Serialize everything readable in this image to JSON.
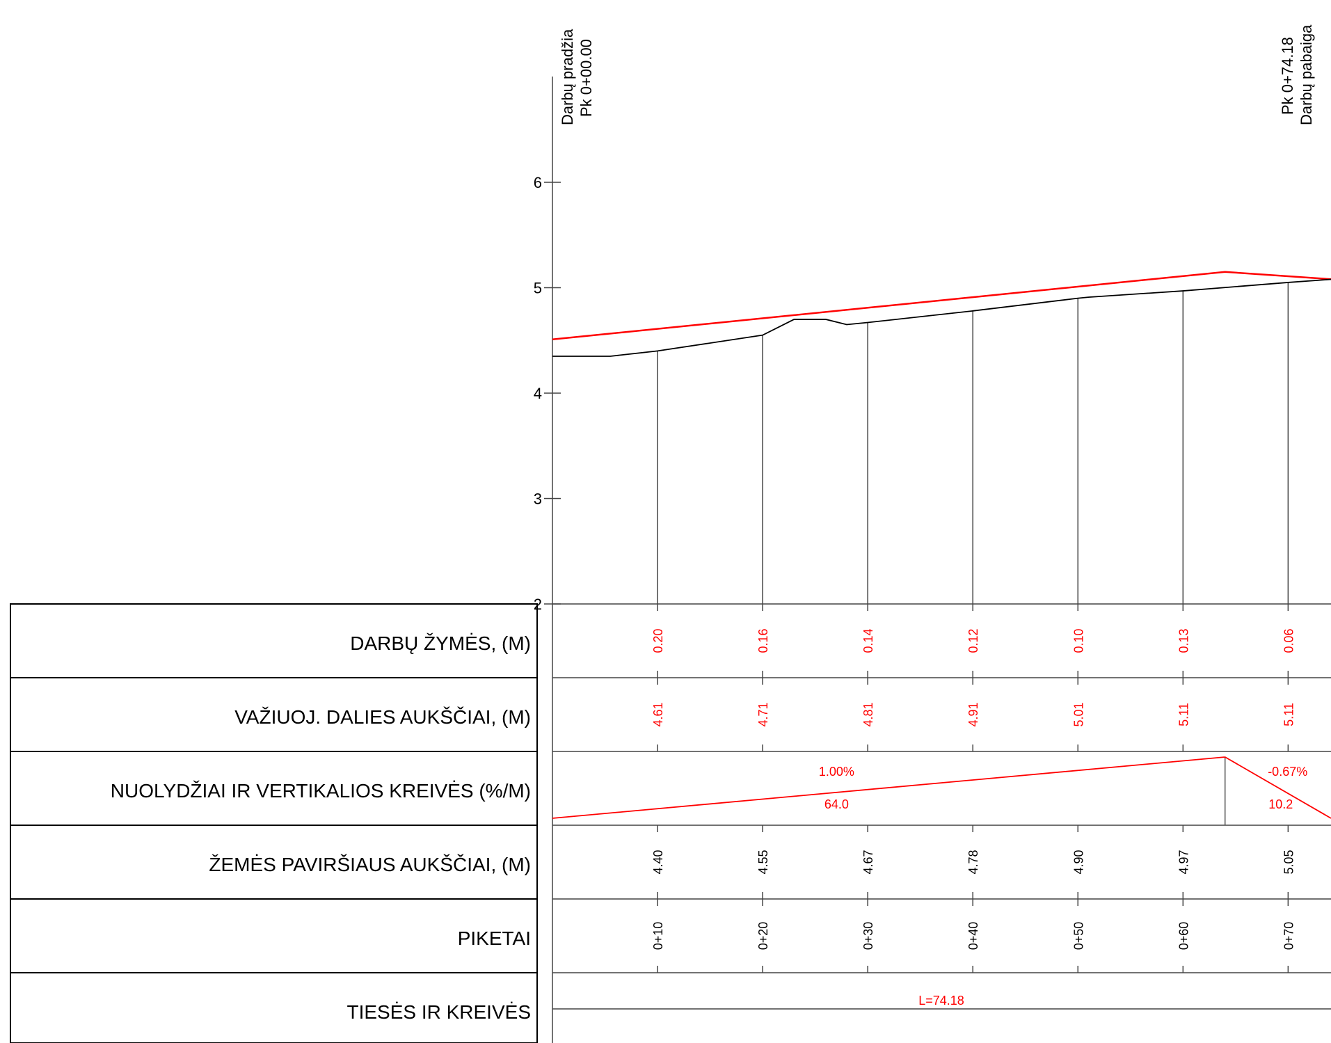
{
  "markers": {
    "start": {
      "line1": "Darbų pradžia",
      "line2": "Pk 0+00.00"
    },
    "end": {
      "line1": "Pk 0+74.18",
      "line2": "Darbų pabaiga"
    }
  },
  "colors": {
    "design": "#ff0000",
    "ground": "#000000",
    "grid": "#555555"
  },
  "chart_data": {
    "type": "line",
    "y_ticks": [
      "6",
      "5",
      "4",
      "3",
      "2"
    ],
    "ylim": [
      2,
      7
    ],
    "xlim": [
      0,
      74.18
    ],
    "series": [
      {
        "x": [
          0,
          64,
          74.18
        ],
        "y": [
          4.51,
          5.15,
          5.08
        ]
      },
      {
        "x": [
          0,
          5.5,
          10,
          20,
          23,
          26,
          28,
          30,
          40,
          50,
          51,
          60,
          70,
          74.18
        ],
        "y": [
          4.35,
          4.35,
          4.4,
          4.55,
          4.7,
          4.7,
          4.65,
          4.67,
          4.78,
          4.9,
          4.91,
          4.97,
          5.05,
          5.08
        ]
      }
    ]
  },
  "stations": [
    10,
    20,
    30,
    40,
    50,
    60,
    70
  ],
  "table": {
    "rows": [
      {
        "title": "DARBŲ ŽYMĖS, (M)",
        "values": [
          "0.20",
          "0.16",
          "0.14",
          "0.12",
          "0.10",
          "0.13",
          "0.06"
        ]
      },
      {
        "title": "VAŽIUOJ. DALIES AUKŠČIAI, (M)",
        "values": [
          "4.61",
          "4.71",
          "4.81",
          "4.91",
          "5.01",
          "5.11",
          "5.11"
        ]
      },
      {
        "title": "NUOLYDŽIAI IR VERTIKALIOS KREIVĖS (%/M)",
        "grades": [
          {
            "grade": "1.00%",
            "length": "64.0",
            "from": 0,
            "to": 64
          },
          {
            "grade": "-0.67%",
            "length": "10.2",
            "from": 64,
            "to": 74.18
          }
        ]
      },
      {
        "title": "ŽEMĖS PAVIRŠIAUS AUKŠČIAI, (M)",
        "values": [
          "4.40",
          "4.55",
          "4.67",
          "4.78",
          "4.90",
          "4.97",
          "5.05"
        ]
      },
      {
        "title": "PIKETAI",
        "values": [
          "0+10",
          "0+20",
          "0+30",
          "0+40",
          "0+50",
          "0+60",
          "0+70"
        ]
      },
      {
        "title": "TIESĖS IR KREIVĖS",
        "label": "L=74.18"
      }
    ]
  }
}
